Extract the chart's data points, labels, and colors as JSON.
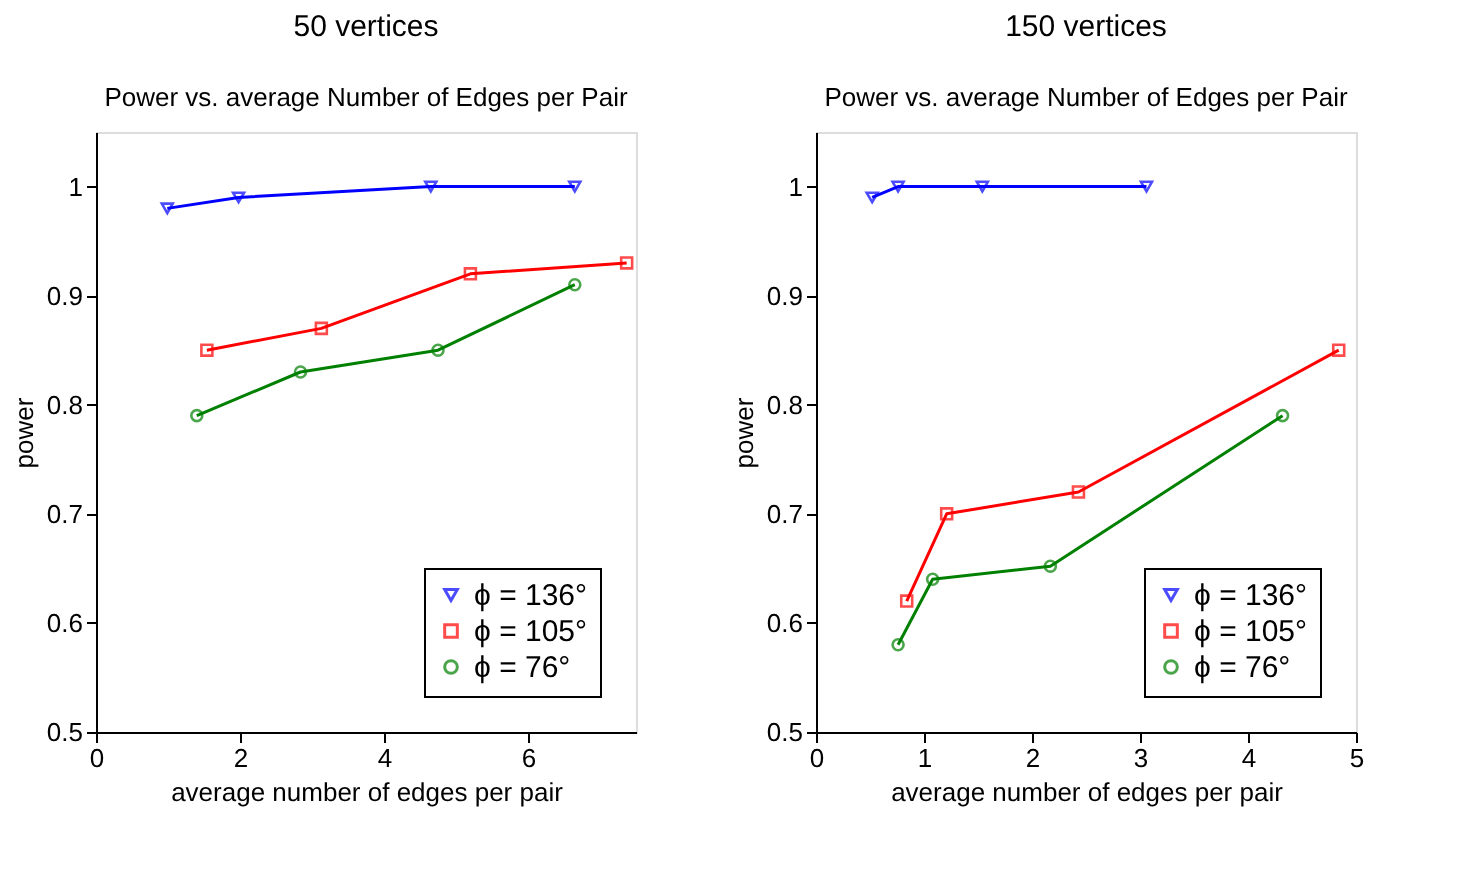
{
  "chart_data": [
    {
      "type": "line",
      "title": "50 vertices",
      "subtitle": "Power vs. average Number of Edges per Pair",
      "xlabel": "average number of edges per pair",
      "ylabel": "power",
      "xlim": [
        0,
        7.5
      ],
      "xticks": [
        0,
        2,
        4,
        6
      ],
      "ylim": [
        0.5,
        1.05
      ],
      "yticks": [
        0.5,
        0.6,
        0.7,
        0.8,
        0.9,
        1
      ],
      "grid": false,
      "legend": "bottom right",
      "series": [
        {
          "name": "ϕ = 136°",
          "color": "#0000ff",
          "marker": "triangle",
          "x": [
            0.99,
            1.98,
            4.65,
            6.65
          ],
          "values": [
            0.98,
            0.99,
            1.0,
            1.0
          ]
        },
        {
          "name": "ϕ = 105°",
          "color": "#ff0000",
          "marker": "square",
          "x": [
            1.54,
            3.13,
            5.2,
            7.37
          ],
          "values": [
            0.85,
            0.87,
            0.92,
            0.93
          ]
        },
        {
          "name": "ϕ = 76°",
          "color": "#008000",
          "marker": "circle",
          "x": [
            1.4,
            2.84,
            4.75,
            6.65
          ],
          "values": [
            0.79,
            0.83,
            0.85,
            0.91
          ]
        }
      ]
    },
    {
      "type": "line",
      "title": "150 vertices",
      "subtitle": "Power vs. average Number of Edges per Pair",
      "xlabel": "average number of edges per pair",
      "ylabel": "power",
      "xlim": [
        0,
        5
      ],
      "xticks": [
        0,
        1,
        2,
        3,
        4,
        5
      ],
      "ylim": [
        0.5,
        1.05
      ],
      "yticks": [
        0.5,
        0.6,
        0.7,
        0.8,
        0.9,
        1
      ],
      "grid": false,
      "legend": "bottom right",
      "series": [
        {
          "name": "ϕ = 136°",
          "color": "#0000ff",
          "marker": "triangle",
          "x": [
            0.52,
            0.76,
            1.54,
            3.06
          ],
          "values": [
            0.99,
            1.0,
            1.0,
            1.0
          ]
        },
        {
          "name": "ϕ = 105°",
          "color": "#ff0000",
          "marker": "square",
          "x": [
            0.84,
            1.21,
            2.43,
            4.84
          ],
          "values": [
            0.62,
            0.7,
            0.72,
            0.85
          ]
        },
        {
          "name": "ϕ = 76°",
          "color": "#008000",
          "marker": "circle",
          "x": [
            0.76,
            1.08,
            2.17,
            4.32
          ],
          "values": [
            0.58,
            0.64,
            0.652,
            0.79
          ]
        }
      ]
    }
  ]
}
